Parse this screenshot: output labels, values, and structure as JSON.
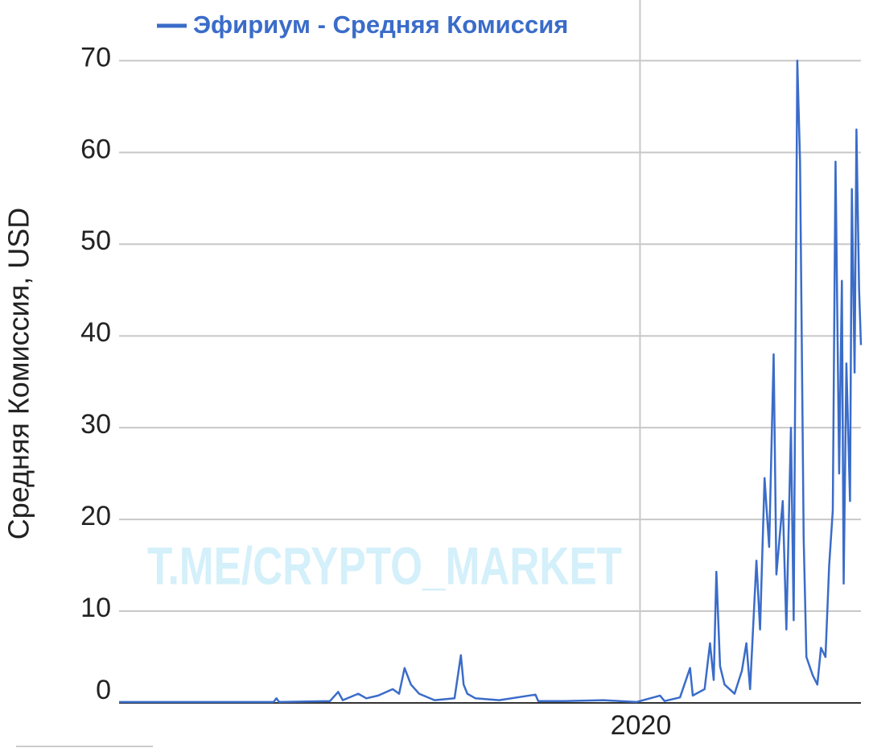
{
  "chart_data": {
    "type": "line",
    "ylabel": "Средняя Комиссия, USD",
    "annotation": "T.ME/CRYPTO_MARKET",
    "legend": "top",
    "grid": true,
    "x": [
      2014.27,
      2015.97,
      2016.0,
      2016.03,
      2016.59,
      2016.68,
      2016.73,
      2016.9,
      2016.99,
      2017.12,
      2017.28,
      2017.35,
      2017.41,
      2017.48,
      2017.57,
      2017.74,
      2017.96,
      2018.03,
      2018.06,
      2018.1,
      2018.19,
      2018.45,
      2018.85,
      2018.88,
      2019.16,
      2019.6,
      2019.96,
      2020.22,
      2020.27,
      2020.44,
      2020.55,
      2020.58,
      2020.71,
      2020.77,
      2020.81,
      2020.84,
      2020.88,
      2020.93,
      2021.04,
      2021.12,
      2021.17,
      2021.21,
      2021.28,
      2021.32,
      2021.37,
      2021.42,
      2021.47,
      2021.5,
      2021.57,
      2021.61,
      2021.66,
      2021.69,
      2021.73,
      2021.76,
      2021.8,
      2021.83,
      2021.9,
      2021.95,
      2021.99,
      2022.04,
      2022.08,
      2022.12,
      2022.15,
      2022.19,
      2022.22,
      2022.24,
      2022.27,
      2022.31,
      2022.33,
      2022.36,
      2022.38,
      2022.41,
      2022.43
    ],
    "series": [
      {
        "name": "Эфириум - Средняя Комиссия",
        "color": "#3a6cc9",
        "values": [
          0.1,
          0.1,
          0.5,
          0.1,
          0.2,
          1.2,
          0.3,
          1.0,
          0.5,
          0.8,
          1.5,
          1.0,
          3.8,
          2.0,
          1.0,
          0.3,
          0.5,
          5.2,
          2.0,
          1.0,
          0.5,
          0.3,
          0.9,
          0.2,
          0.2,
          0.3,
          0.1,
          0.8,
          0.2,
          0.6,
          3.8,
          0.8,
          1.5,
          6.5,
          2.5,
          14.3,
          4,
          2.0,
          1.0,
          3.5,
          6.5,
          1.5,
          15.5,
          8,
          24.5,
          17,
          38,
          14,
          22,
          8,
          30,
          9,
          70,
          59,
          18,
          5,
          3,
          2,
          6,
          5,
          15,
          21,
          59,
          25,
          46,
          13,
          37,
          22,
          56,
          36,
          62.5,
          45,
          39
        ]
      }
    ],
    "xlim": [
      2014.27,
      2022.43
    ],
    "xticks": [
      2020
    ],
    "ylim": [
      0,
      76
    ],
    "yticks": [
      0,
      10,
      20,
      30,
      40,
      50,
      60,
      70
    ]
  }
}
